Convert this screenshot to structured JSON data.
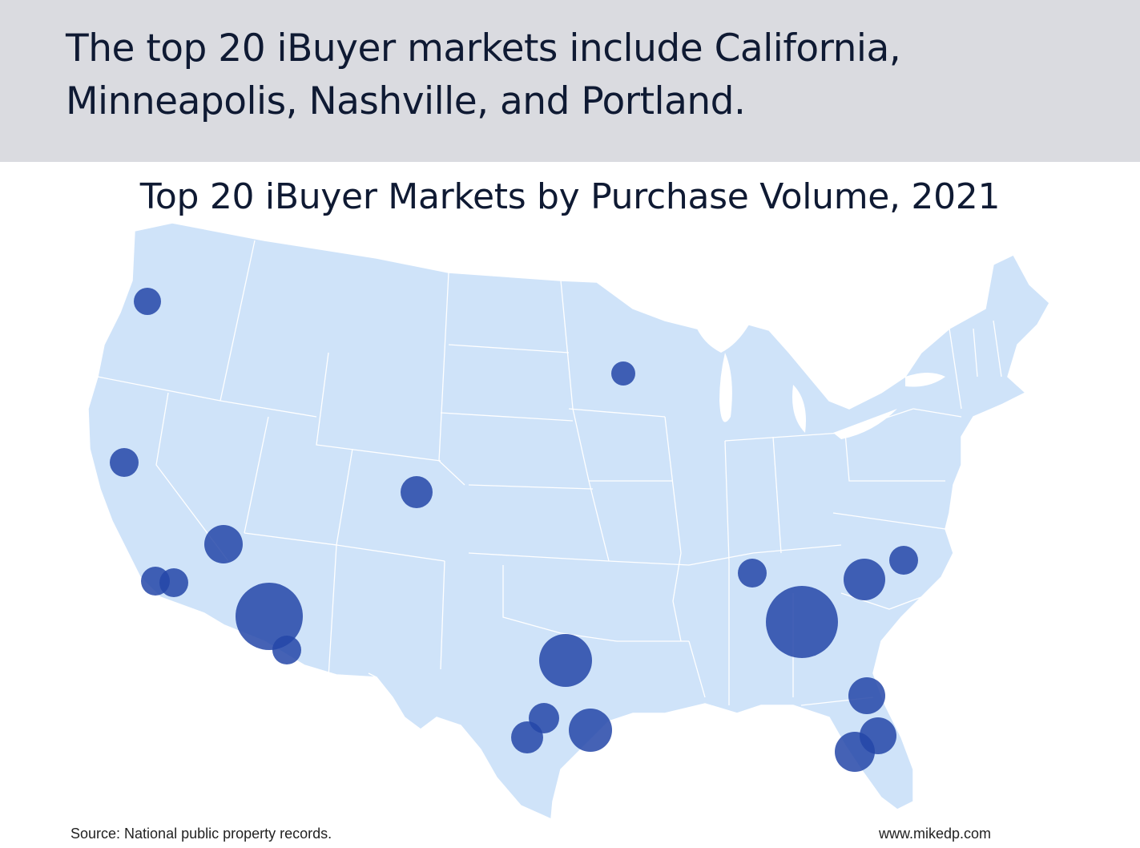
{
  "header": {
    "headline": "The top 20 iBuyer markets include California, Minneapolis, Nashville, and Portland."
  },
  "map": {
    "title": "Top 20 iBuyer Markets by Purchase Volume, 2021",
    "land_color": "#cfe3f9",
    "border_color": "#ffffff",
    "bubble_color": "#2447a8",
    "bubble_opacity": 0.85
  },
  "footer": {
    "source": "Source: National public property records.",
    "website": "www.mikedp.com"
  }
}
